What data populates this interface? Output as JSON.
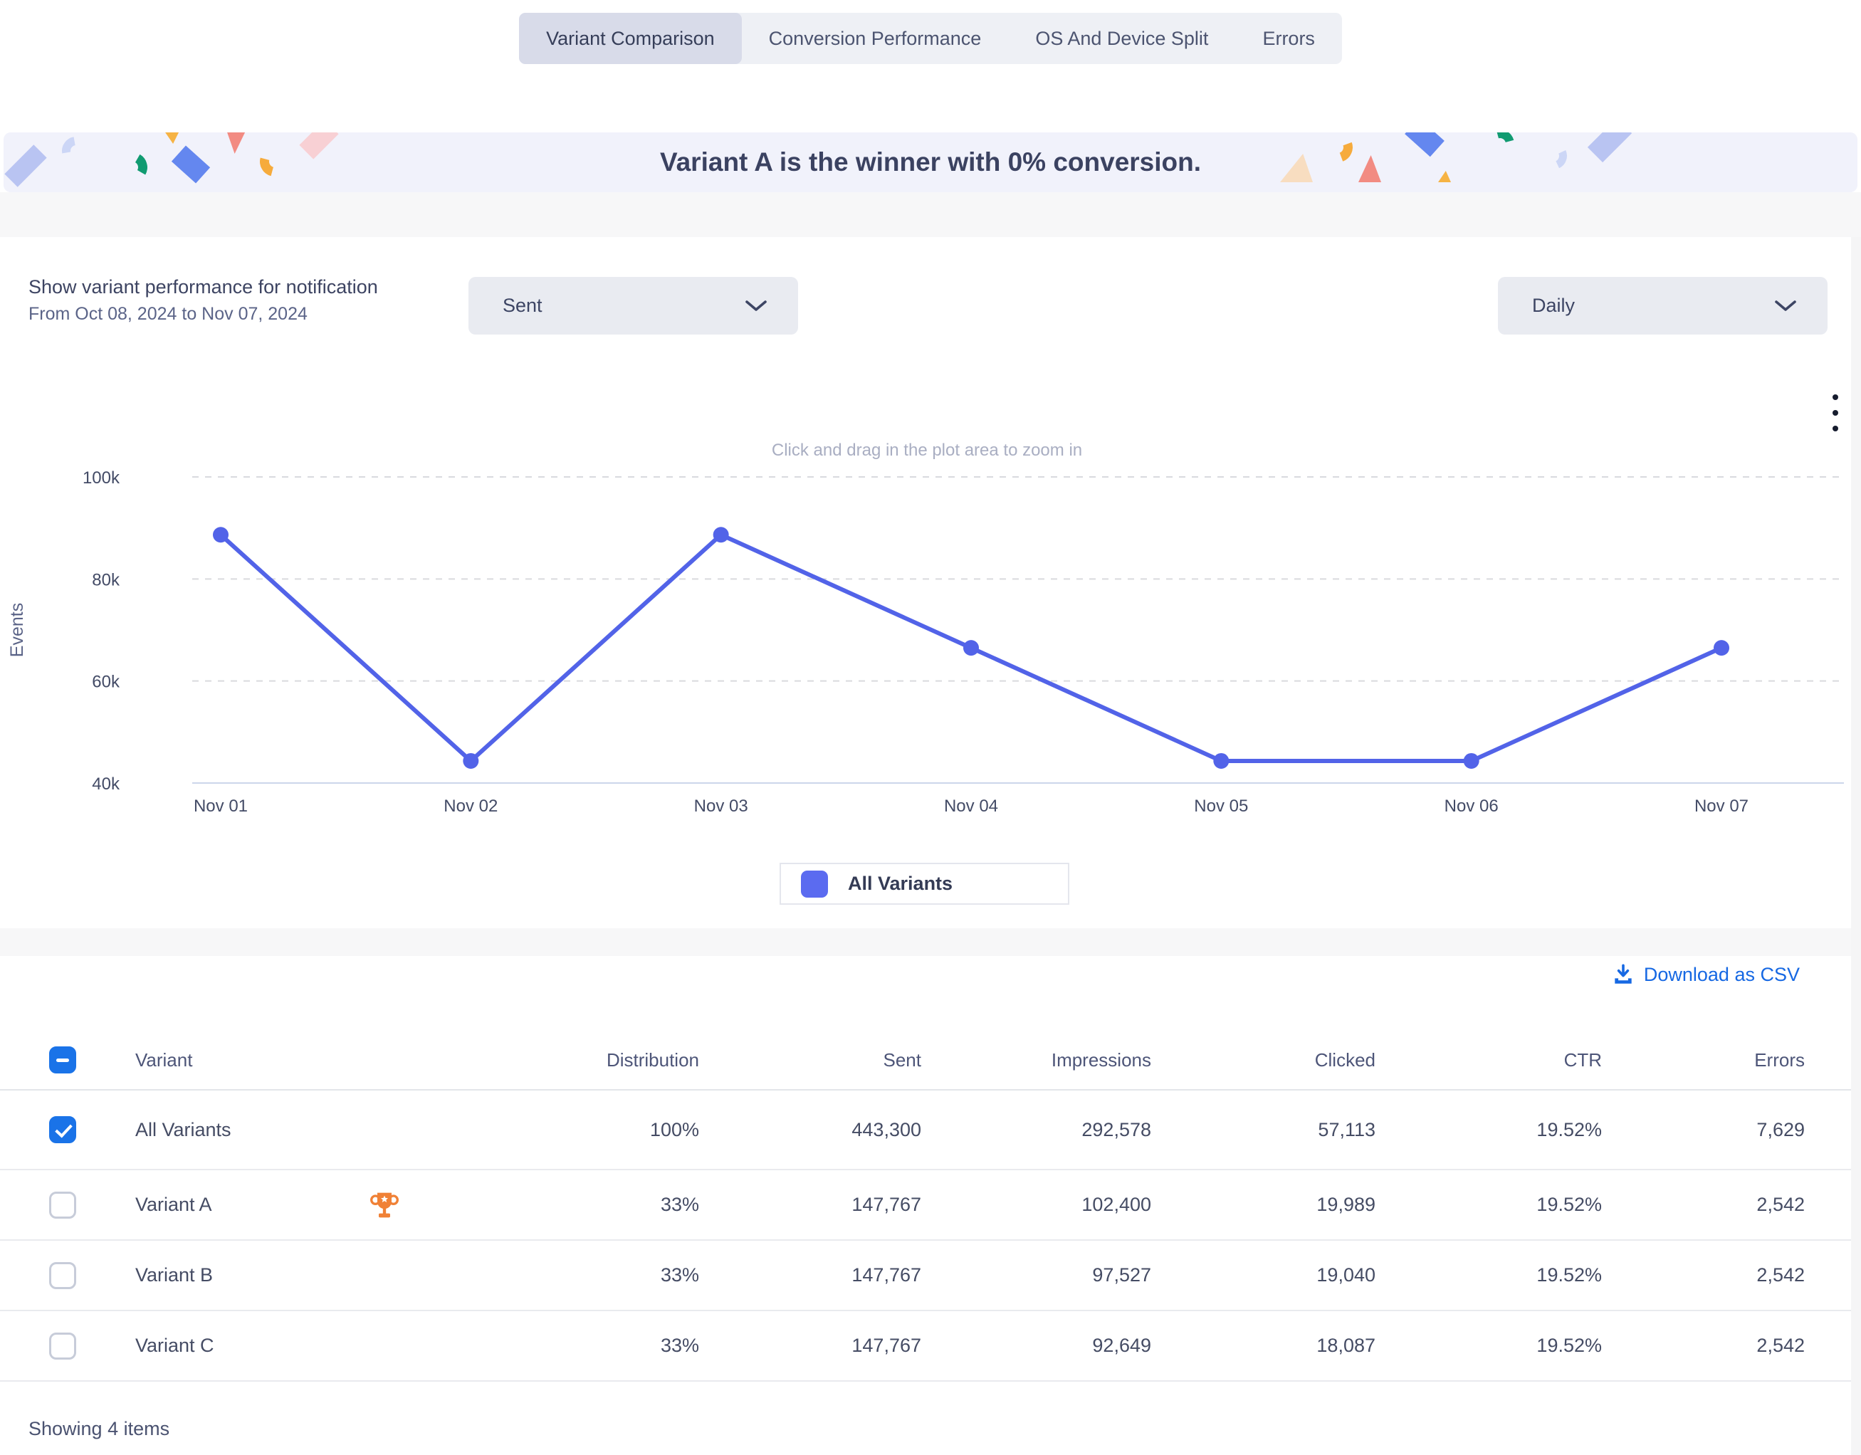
{
  "tabs": {
    "items": [
      {
        "label": "Variant Comparison",
        "active": true
      },
      {
        "label": "Conversion Performance",
        "active": false
      },
      {
        "label": "OS And Device Split",
        "active": false
      },
      {
        "label": "Errors",
        "active": false
      }
    ]
  },
  "banner": {
    "message": "Variant A is the winner with 0% conversion."
  },
  "controls": {
    "title": "Show variant performance for notification",
    "date_range": "From Oct 08, 2024 to Nov 07, 2024",
    "metric_dropdown": {
      "value": "Sent"
    },
    "interval_dropdown": {
      "value": "Daily"
    }
  },
  "chart": {
    "hint": "Click and drag in the plot area to zoom in",
    "legend": {
      "label": "All Variants",
      "color": "#5b6bf0"
    }
  },
  "chart_data": {
    "type": "line",
    "title": "",
    "x": [
      "Nov 01",
      "Nov 02",
      "Nov 03",
      "Nov 04",
      "Nov 05",
      "Nov 06",
      "Nov 07"
    ],
    "series": [
      {
        "name": "All Variants",
        "color": "#5263e8",
        "values": [
          88660,
          44330,
          88660,
          66495,
          44330,
          44330,
          66495
        ]
      }
    ],
    "xlabel": "",
    "ylabel": "Events",
    "ylim": [
      40000,
      100000
    ],
    "yticks": [
      {
        "value": 100000,
        "label": "100k"
      },
      {
        "value": 80000,
        "label": "80k"
      },
      {
        "value": 60000,
        "label": "60k"
      },
      {
        "value": 40000,
        "label": "40k"
      }
    ],
    "grid": "horizontal-dashed",
    "legend_position": "bottom-center"
  },
  "table": {
    "download_label": "Download as CSV",
    "header_checkbox": "indeterminate",
    "columns": [
      "Variant",
      "Distribution",
      "Sent",
      "Impressions",
      "Clicked",
      "CTR",
      "Errors"
    ],
    "rows": [
      {
        "variant": "All Variants",
        "checked": true,
        "winner": false,
        "distribution": "100%",
        "sent": "443,300",
        "impressions": "292,578",
        "clicked": "57,113",
        "ctr": "19.52%",
        "errors": "7,629"
      },
      {
        "variant": "Variant A",
        "checked": false,
        "winner": true,
        "distribution": "33%",
        "sent": "147,767",
        "impressions": "102,400",
        "clicked": "19,989",
        "ctr": "19.52%",
        "errors": "2,542"
      },
      {
        "variant": "Variant B",
        "checked": false,
        "winner": false,
        "distribution": "33%",
        "sent": "147,767",
        "impressions": "97,527",
        "clicked": "19,040",
        "ctr": "19.52%",
        "errors": "2,542"
      },
      {
        "variant": "Variant C",
        "checked": false,
        "winner": false,
        "distribution": "33%",
        "sent": "147,767",
        "impressions": "92,649",
        "clicked": "18,087",
        "ctr": "19.52%",
        "errors": "2,542"
      }
    ],
    "footer": "Showing 4 items"
  },
  "colors": {
    "accent_blue": "#1a73e8",
    "link_blue": "#1668e3",
    "line_blue": "#5263e8",
    "legend_swatch": "#5b6bf0",
    "trophy_orange": "#f08136",
    "banner_bg": "#f1f2fb",
    "tab_active_bg": "#d8dbe9"
  }
}
